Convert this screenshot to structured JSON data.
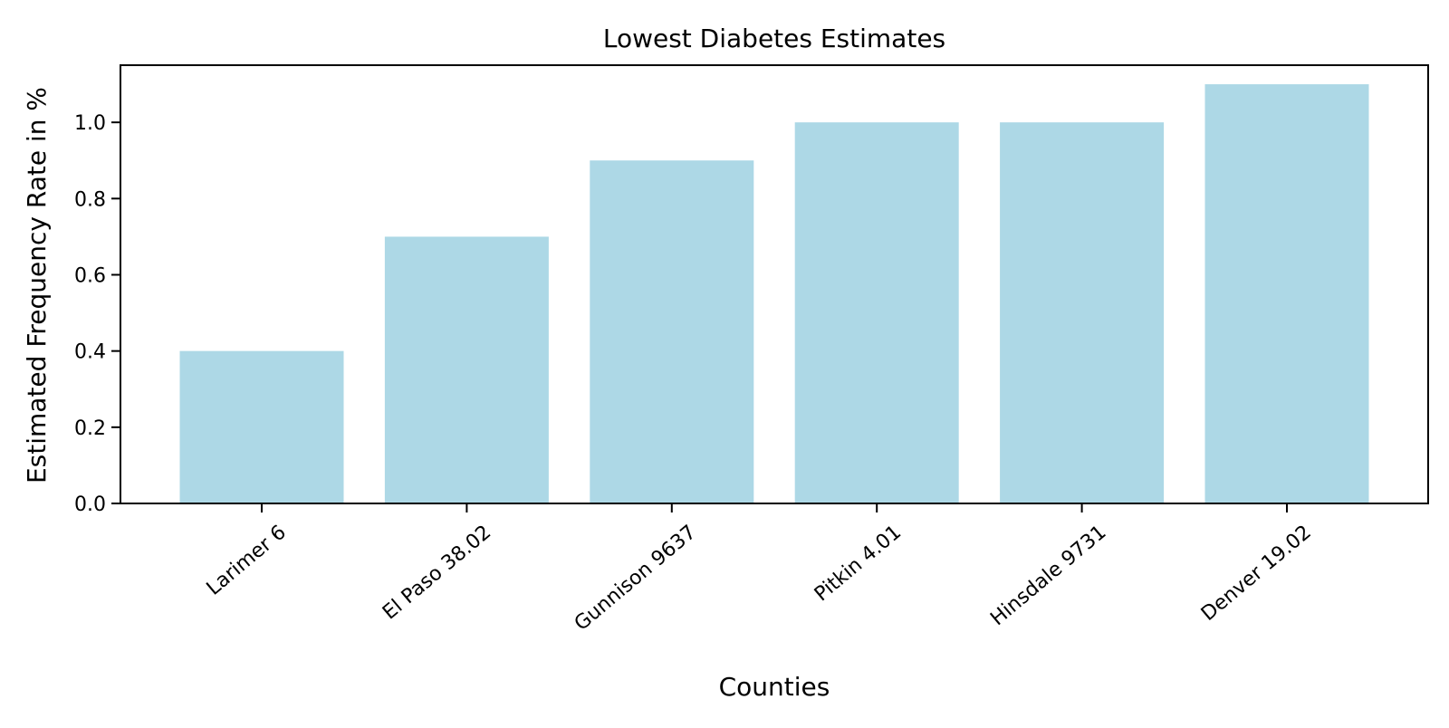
{
  "chart_data": {
    "type": "bar",
    "title": "Lowest Diabetes Estimates",
    "xlabel": "Counties",
    "ylabel": "Estimated Frequency Rate in %",
    "categories": [
      "Larimer 6",
      "El Paso 38.02",
      "Gunnison 9637",
      "Pitkin 4.01",
      "Hinsdale 9731",
      "Denver 19.02"
    ],
    "values": [
      0.4,
      0.7,
      0.9,
      1.0,
      1.0,
      1.1
    ],
    "ylim": [
      0,
      1.15
    ],
    "yticks": [
      "0.0",
      "0.2",
      "0.4",
      "0.6",
      "0.8",
      "1.0"
    ],
    "grid": false,
    "bar_color": "#add8e6",
    "axis_color": "#000000"
  }
}
